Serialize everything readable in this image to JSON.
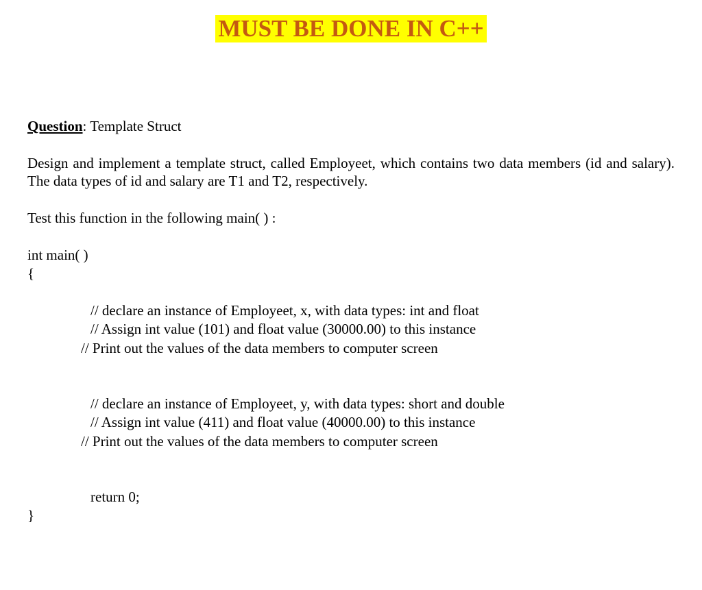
{
  "heading": {
    "text": "MUST BE DONE IN C++",
    "color": "#c45a11",
    "background": "#ffff00",
    "fontsize": 35,
    "fontweight": "bold"
  },
  "question": {
    "label": "Question",
    "title": "Template Struct"
  },
  "description": "Design and implement a template struct, called Employeet, which contains two data members (id and salary). The data types of id and salary are T1 and T2, respectively.",
  "test_instruction": "Test this function in the following main( ) :",
  "code": {
    "fn_open": "int main( )",
    "brace_open": "{",
    "block1": {
      "l1": "//  declare an instance of Employeet, x, with data types:  int and float",
      "l2": "//  Assign int value (101) and float value (30000.00) to this instance",
      "l3": "//  Print out the values of the data members to computer screen"
    },
    "block2": {
      "l1": "//  declare an instance of Employeet, y, with data types:  short and double",
      "l2": "//  Assign int value (411) and float value (40000.00) to this instance",
      "l3": "//  Print out the values of the data members to computer screen"
    },
    "return": "return 0;",
    "brace_close": "}"
  },
  "colors": {
    "text": "#000000",
    "background": "#ffffff"
  },
  "typography": {
    "body_fontsize": 21,
    "font_family": "Times New Roman"
  }
}
